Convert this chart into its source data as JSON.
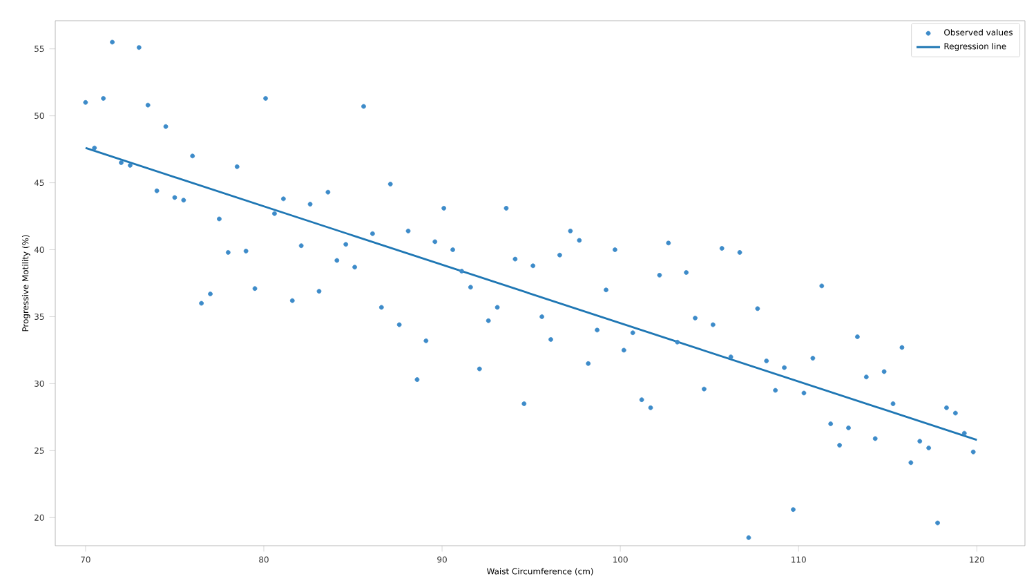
{
  "chart_data": {
    "type": "scatter",
    "xlabel": "Waist Circumference (cm)",
    "ylabel": "Progressive Motility (%)",
    "xlim": [
      68.3,
      122.7
    ],
    "ylim": [
      17.9,
      57.1
    ],
    "xticks": [
      70,
      80,
      90,
      100,
      110,
      120
    ],
    "yticks": [
      20,
      25,
      30,
      35,
      40,
      45,
      50,
      55
    ],
    "grid": false,
    "legend": "top right",
    "series": [
      {
        "name": "Observed values",
        "marker": "circle",
        "color": "#3d8bc9",
        "x": [
          70.0,
          70.5,
          71.0,
          71.5,
          72.0,
          72.5,
          73.0,
          73.5,
          74.0,
          74.5,
          75.0,
          75.5,
          76.0,
          76.5,
          77.0,
          77.5,
          78.0,
          78.5,
          79.0,
          79.5,
          80.1,
          80.6,
          81.1,
          81.6,
          82.1,
          82.6,
          83.1,
          83.6,
          84.1,
          84.6,
          85.1,
          85.6,
          86.1,
          86.6,
          87.1,
          87.6,
          88.1,
          88.6,
          89.1,
          89.6,
          90.1,
          90.6,
          91.1,
          91.6,
          92.1,
          92.6,
          93.1,
          93.6,
          94.1,
          94.6,
          95.1,
          95.6,
          96.1,
          96.6,
          97.2,
          97.7,
          98.2,
          98.7,
          99.2,
          99.7,
          100.2,
          100.7,
          101.2,
          101.7,
          102.2,
          102.7,
          103.2,
          103.7,
          104.2,
          104.7,
          105.2,
          105.7,
          106.2,
          106.7,
          107.2,
          107.7,
          108.2,
          108.7,
          109.2,
          109.7,
          110.3,
          110.8,
          111.3,
          111.8,
          112.3,
          112.8,
          113.3,
          113.8,
          114.3,
          114.8,
          115.3,
          115.8,
          116.3,
          116.8,
          117.3,
          117.8,
          118.3,
          118.8,
          119.3,
          119.8
        ],
        "values": [
          51.0,
          47.6,
          51.3,
          55.5,
          46.5,
          46.3,
          55.1,
          50.8,
          44.4,
          49.2,
          43.9,
          43.7,
          47.0,
          36.0,
          36.7,
          42.3,
          39.8,
          46.2,
          39.9,
          37.1,
          51.3,
          42.7,
          43.8,
          36.2,
          40.3,
          43.4,
          36.9,
          44.3,
          39.2,
          40.4,
          38.7,
          50.7,
          41.2,
          35.7,
          44.9,
          34.4,
          41.4,
          30.3,
          33.2,
          40.6,
          43.1,
          40.0,
          38.4,
          37.2,
          31.1,
          34.7,
          35.7,
          43.1,
          39.3,
          28.5,
          38.8,
          35.0,
          33.3,
          39.6,
          41.4,
          40.7,
          31.5,
          34.0,
          37.0,
          40.0,
          32.5,
          33.8,
          28.8,
          28.2,
          38.1,
          40.5,
          33.1,
          38.3,
          34.9,
          29.6,
          34.4,
          40.1,
          32.0,
          39.8,
          18.5,
          35.6,
          31.7,
          29.5,
          31.2,
          20.6,
          29.3,
          31.9,
          37.3,
          27.0,
          25.4,
          26.7,
          33.5,
          30.5,
          25.9,
          30.9,
          28.5,
          32.7,
          24.1,
          25.7,
          25.2,
          19.6,
          28.2,
          27.8,
          26.3,
          24.9
        ]
      },
      {
        "name": "Regression line",
        "type": "line",
        "marker": "none",
        "line_style": "solid",
        "color": "#1f77b4",
        "x": [
          70,
          120
        ],
        "values": [
          47.6,
          25.8
        ]
      }
    ]
  }
}
